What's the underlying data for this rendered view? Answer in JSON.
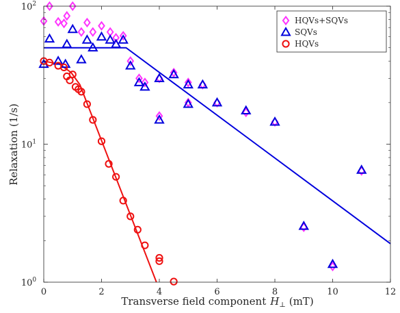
{
  "chart_data": {
    "type": "scatter",
    "title": "",
    "xlabel": "Transverse field component",
    "xlabel_symbol": "H",
    "xlabel_subscript": "⊥",
    "xlabel_unit": "(mT)",
    "ylabel": "Relaxation (1/s)",
    "xlim": [
      0,
      12
    ],
    "ylim": [
      1,
      100
    ],
    "yscale": "log",
    "x_ticks": [
      {
        "value": 0,
        "label": "0"
      },
      {
        "value": 2,
        "label": "2"
      },
      {
        "value": 4,
        "label": "4"
      },
      {
        "value": 6,
        "label": "6"
      },
      {
        "value": 8,
        "label": "8"
      },
      {
        "value": 10,
        "label": "10"
      },
      {
        "value": 12,
        "label": "12"
      }
    ],
    "y_ticks": [
      {
        "value": 1,
        "base": "10",
        "exp": "0"
      },
      {
        "value": 10,
        "base": "10",
        "exp": "1"
      },
      {
        "value": 100,
        "base": "10",
        "exp": "2"
      }
    ],
    "grid": false,
    "legend_position": "top-right",
    "series": [
      {
        "name": "HQVs+SQVs",
        "marker": "diamond",
        "color": "#ff33ff",
        "points": [
          [
            0.0,
            78
          ],
          [
            0.2,
            100
          ],
          [
            0.5,
            77
          ],
          [
            0.7,
            75
          ],
          [
            0.8,
            85
          ],
          [
            1.0,
            103
          ],
          [
            1.3,
            65
          ],
          [
            1.5,
            76
          ],
          [
            1.7,
            65
          ],
          [
            2.0,
            72
          ],
          [
            2.3,
            65
          ],
          [
            2.5,
            59
          ],
          [
            2.75,
            61
          ],
          [
            3.0,
            40
          ],
          [
            3.3,
            30
          ],
          [
            3.5,
            28
          ],
          [
            4.0,
            16
          ],
          [
            4.0,
            30
          ],
          [
            4.5,
            33
          ],
          [
            5.0,
            28
          ],
          [
            5.0,
            20
          ],
          [
            5.5,
            27
          ],
          [
            6.0,
            20
          ],
          [
            7.0,
            17
          ],
          [
            8.0,
            14.5
          ],
          [
            9.0,
            2.5
          ],
          [
            10.0,
            1.3
          ],
          [
            11.0,
            6.4
          ]
        ]
      },
      {
        "name": "SQVs",
        "marker": "triangle",
        "color": "#0000dd",
        "points": [
          [
            0.0,
            38
          ],
          [
            0.2,
            58
          ],
          [
            0.5,
            40
          ],
          [
            0.75,
            38
          ],
          [
            0.8,
            53
          ],
          [
            1.0,
            68
          ],
          [
            1.3,
            41
          ],
          [
            1.5,
            57
          ],
          [
            1.7,
            50
          ],
          [
            2.0,
            60
          ],
          [
            2.3,
            57
          ],
          [
            2.5,
            53
          ],
          [
            2.75,
            57
          ],
          [
            3.0,
            37
          ],
          [
            3.3,
            28
          ],
          [
            3.5,
            26
          ],
          [
            4.0,
            15
          ],
          [
            4.0,
            30
          ],
          [
            4.5,
            32
          ],
          [
            5.0,
            27
          ],
          [
            5.0,
            19.5
          ],
          [
            5.5,
            27
          ],
          [
            6.0,
            20
          ],
          [
            7.0,
            17.5
          ],
          [
            8.0,
            14.5
          ],
          [
            9.0,
            2.55
          ],
          [
            10.0,
            1.35
          ],
          [
            11.0,
            6.5
          ]
        ]
      },
      {
        "name": "HQVs",
        "marker": "circle",
        "color": "#ee1111",
        "points": [
          [
            0.0,
            40
          ],
          [
            0.2,
            39
          ],
          [
            0.5,
            37
          ],
          [
            0.7,
            36
          ],
          [
            0.8,
            31
          ],
          [
            0.9,
            29
          ],
          [
            1.0,
            32
          ],
          [
            1.1,
            26
          ],
          [
            1.2,
            25
          ],
          [
            1.3,
            24
          ],
          [
            1.5,
            19.5
          ],
          [
            1.7,
            15
          ],
          [
            2.0,
            10.5
          ],
          [
            2.25,
            7.2
          ],
          [
            2.5,
            5.8
          ],
          [
            2.75,
            3.9
          ],
          [
            3.0,
            3.0
          ],
          [
            3.25,
            2.4
          ],
          [
            3.5,
            1.85
          ],
          [
            4.0,
            1.5
          ],
          [
            4.0,
            1.42
          ],
          [
            4.5,
            1.01
          ]
        ]
      }
    ],
    "fit_lines": [
      {
        "color": "#0000dd",
        "points": [
          [
            0.0,
            50
          ],
          [
            2.85,
            50
          ],
          [
            12.0,
            1.9
          ]
        ]
      },
      {
        "color": "#ee1111",
        "points": [
          [
            0.0,
            40
          ],
          [
            0.55,
            38
          ],
          [
            0.95,
            33
          ],
          [
            1.25,
            27
          ],
          [
            3.9,
            1.0
          ]
        ]
      }
    ]
  }
}
